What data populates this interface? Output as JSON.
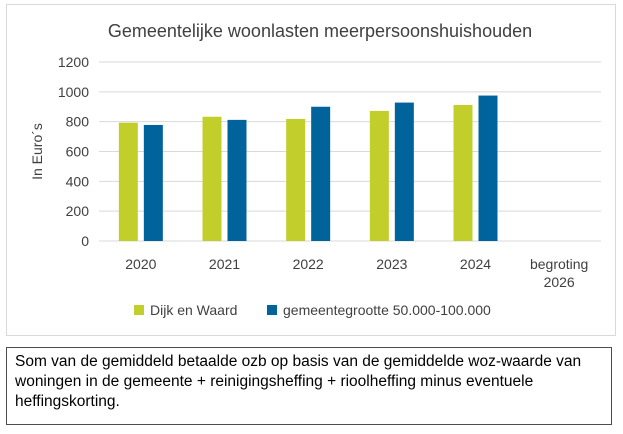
{
  "chart_data": {
    "type": "bar",
    "title": "Gemeentelijke woonlasten meerpersoonshuishouden",
    "ylabel": "In Euro´s",
    "xlabel": "",
    "ylim": [
      0,
      1200
    ],
    "yticks": [
      0,
      200,
      400,
      600,
      800,
      1000,
      1200
    ],
    "grid": true,
    "legend_position": "bottom",
    "categories": [
      "2020",
      "2021",
      "2022",
      "2023",
      "2024",
      "begroting 2026"
    ],
    "series": [
      {
        "name": "Dijk en Waard",
        "color": "#c2cf2b",
        "values": [
          793,
          833,
          818,
          872,
          912,
          null
        ]
      },
      {
        "name": "gemeentegrootte 50.000-100.000",
        "color": "#01639b",
        "values": [
          778,
          812,
          900,
          928,
          975,
          null
        ]
      }
    ]
  },
  "footnote": {
    "text": "Som van de gemiddeld betaalde ozb op basis van de gemiddelde woz-waarde van woningen in de gemeente + reinigingsheffing + rioolheffing minus eventuele heffingskorting."
  }
}
